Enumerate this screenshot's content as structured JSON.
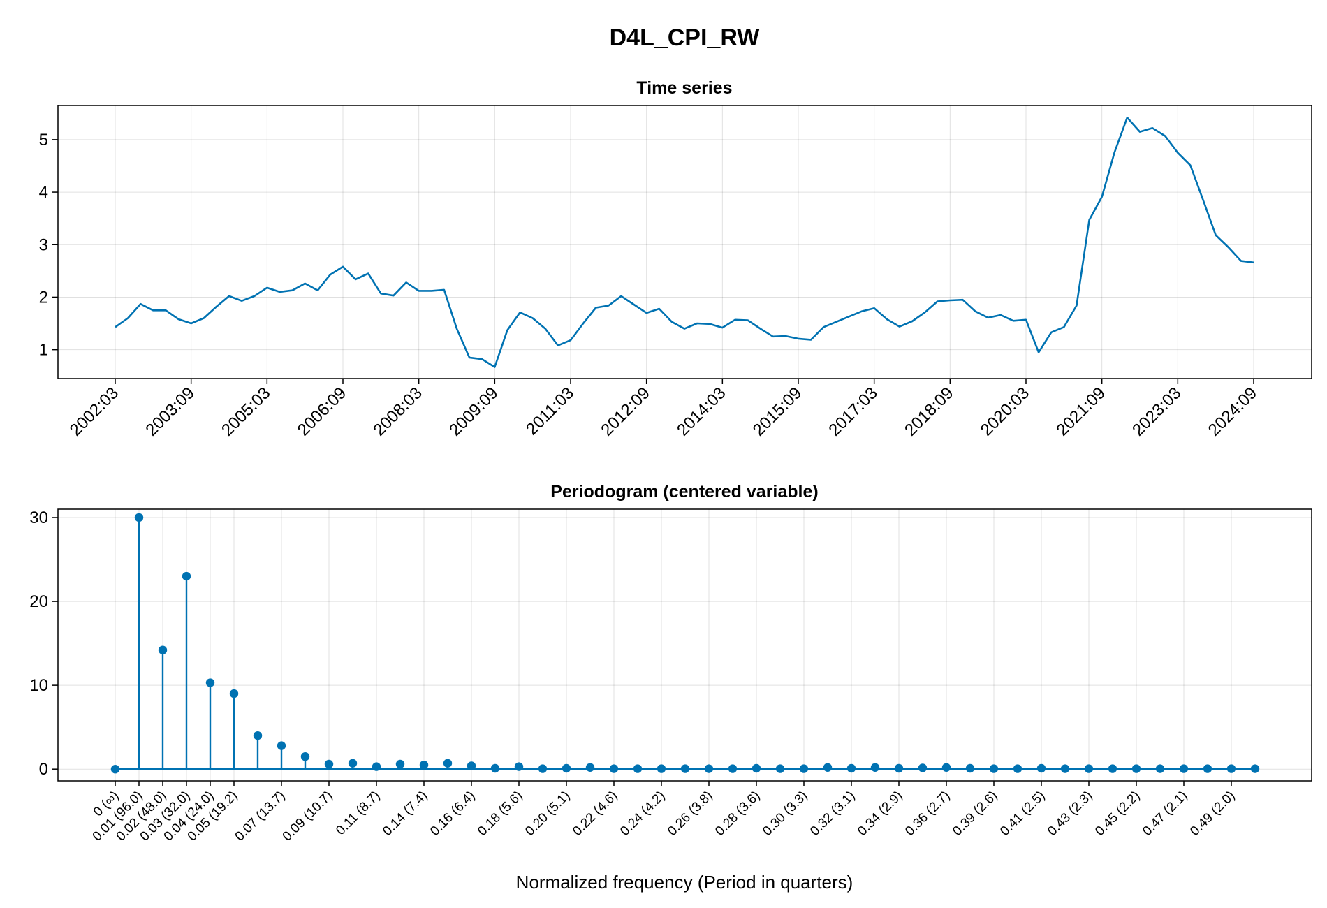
{
  "figure_title": "D4L_CPI_RW",
  "chart_data": [
    {
      "type": "line",
      "title": "Time series",
      "xlabel": "",
      "ylabel": "",
      "x_tick_labels": [
        "2002:03",
        "2003:09",
        "2005:03",
        "2006:09",
        "2008:03",
        "2009:09",
        "2011:03",
        "2012:09",
        "2014:03",
        "2015:09",
        "2017:03",
        "2018:09",
        "2020:03",
        "2021:09",
        "2023:03",
        "2024:09"
      ],
      "y_ticks": [
        1,
        2,
        3,
        4,
        5
      ],
      "ylim": [
        0.45,
        5.65
      ],
      "grid": true,
      "series": [
        {
          "color": "#0072b2",
          "values": [
            1.43,
            1.6,
            1.87,
            1.75,
            1.75,
            1.58,
            1.5,
            1.6,
            1.82,
            2.02,
            1.93,
            2.02,
            2.18,
            2.1,
            2.13,
            2.26,
            2.13,
            2.43,
            2.58,
            2.34,
            2.45,
            2.07,
            2.03,
            2.28,
            2.12,
            2.12,
            2.14,
            1.4,
            0.85,
            0.82,
            0.67,
            1.37,
            1.71,
            1.6,
            1.4,
            1.08,
            1.18,
            1.5,
            1.8,
            1.84,
            2.02,
            1.86,
            1.7,
            1.78,
            1.53,
            1.4,
            1.5,
            1.49,
            1.42,
            1.57,
            1.56,
            1.4,
            1.25,
            1.26,
            1.21,
            1.19,
            1.43,
            1.53,
            1.63,
            1.73,
            1.79,
            1.58,
            1.44,
            1.54,
            1.71,
            1.92,
            1.94,
            1.95,
            1.73,
            1.61,
            1.66,
            1.55,
            1.57,
            0.95,
            1.33,
            1.43,
            1.84,
            3.47,
            3.91,
            4.76,
            5.42,
            5.15,
            5.22,
            5.07,
            4.75,
            4.51,
            3.85,
            3.18,
            2.95,
            2.69,
            2.66
          ]
        }
      ]
    },
    {
      "type": "stem",
      "title": "Periodogram (centered variable)",
      "xlabel": "Normalized frequency (Period in quarters)",
      "ylabel": "",
      "x_tick_labels": [
        "0 (∞)",
        "0.01 (96.0)",
        "0.02 (48.0)",
        "0.03 (32.0)",
        "0.04 (24.0)",
        "0.05 (19.2)",
        "0.07 (13.7)",
        "0.09 (10.7)",
        "0.11 (8.7)",
        "0.14 (7.4)",
        "0.16 (6.4)",
        "0.18 (5.6)",
        "0.20 (5.1)",
        "0.22 (4.6)",
        "0.24 (4.2)",
        "0.26 (3.8)",
        "0.28 (3.6)",
        "0.30 (3.3)",
        "0.32 (3.1)",
        "0.34 (2.9)",
        "0.36 (2.7)",
        "0.39 (2.6)",
        "0.41 (2.5)",
        "0.43 (2.3)",
        "0.45 (2.2)",
        "0.47 (2.1)",
        "0.49 (2.0)"
      ],
      "x_tick_positions": [
        0,
        1,
        2,
        3,
        4,
        5,
        7,
        9,
        11,
        13,
        15,
        17,
        19,
        21,
        23,
        25,
        27,
        29,
        31,
        33,
        35,
        37,
        39,
        41,
        43,
        45,
        47
      ],
      "y_ticks": [
        0,
        10,
        20,
        30
      ],
      "ylim": [
        -1.4,
        31.0
      ],
      "grid": true,
      "series": [
        {
          "color": "#0072b2",
          "values": [
            0,
            30.0,
            14.2,
            23.0,
            10.3,
            9.0,
            4.0,
            2.8,
            1.5,
            0.6,
            0.7,
            0.3,
            0.6,
            0.5,
            0.7,
            0.4,
            0.1,
            0.3,
            0.05,
            0.1,
            0.2,
            0.05,
            0.05,
            0.05,
            0.05,
            0.05,
            0.05,
            0.1,
            0.05,
            0.05,
            0.2,
            0.1,
            0.2,
            0.1,
            0.15,
            0.2,
            0.1,
            0.05,
            0.05,
            0.1,
            0.05,
            0.05,
            0.05,
            0.05,
            0.05,
            0.05,
            0.05,
            0.05,
            0.05
          ]
        }
      ]
    }
  ]
}
